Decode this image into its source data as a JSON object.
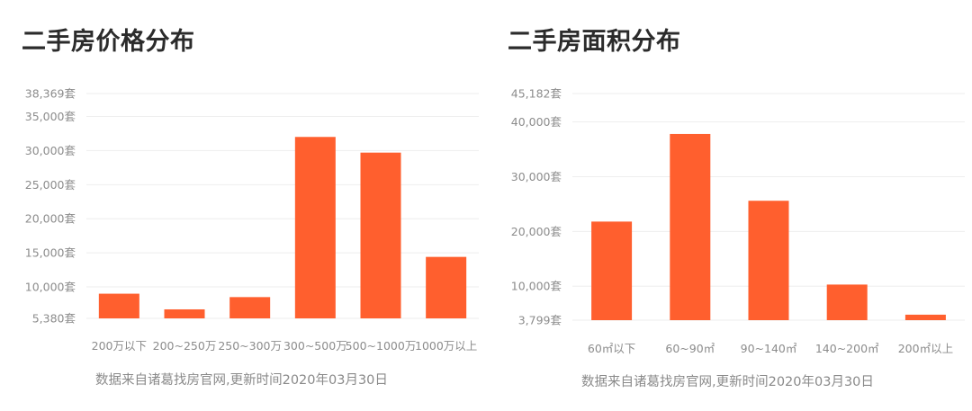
{
  "chart_data": [
    {
      "type": "bar",
      "title": "二手房价格分布",
      "categories": [
        "200万以下",
        "200~250万",
        "250~300万",
        "300~500万",
        "500~1000万",
        "1000万以上"
      ],
      "values": [
        9000,
        6700,
        8500,
        32000,
        29700,
        14400
      ],
      "ylim": [
        5380,
        38369
      ],
      "yticks": [
        5380,
        10000,
        15000,
        20000,
        25000,
        30000,
        35000,
        38369
      ],
      "ytick_labels": [
        "5,380套",
        "10,000套",
        "15,000套",
        "20,000套",
        "25,000套",
        "30,000套",
        "35,000套",
        "38,369套"
      ],
      "grid": true,
      "bar_color": "#ff5f2e",
      "note": "数据来自诸葛找房官网,更新时间2020年03月30日"
    },
    {
      "type": "bar",
      "title": "二手房面积分布",
      "categories": [
        "60㎡以下",
        "60~90㎡",
        "90~140㎡",
        "140~200㎡",
        "200㎡以上"
      ],
      "values": [
        21800,
        37800,
        25600,
        10300,
        4800
      ],
      "ylim": [
        3799,
        45182
      ],
      "yticks": [
        3799,
        10000,
        20000,
        30000,
        40000,
        45182
      ],
      "ytick_labels": [
        "3,799套",
        "10,000套",
        "20,000套",
        "30,000套",
        "40,000套",
        "45,182套"
      ],
      "grid": true,
      "bar_color": "#ff5f2e",
      "note": "数据来自诸葛找房官网,更新时间2020年03月30日"
    }
  ]
}
